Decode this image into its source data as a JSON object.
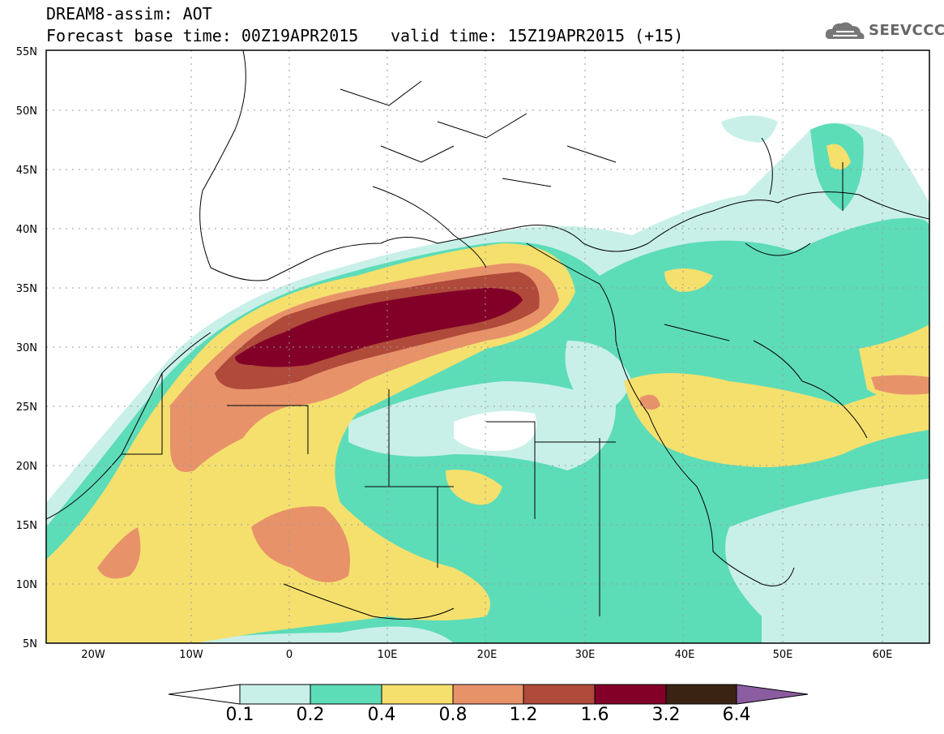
{
  "header": {
    "line1": "DREAM8-assim: AOT",
    "line2": "Forecast base time: 00Z19APR2015",
    "valid": "valid time: 15Z19APR2015 (+15)",
    "logo_text": "SEEVCCC"
  },
  "map": {
    "lat_labels": [
      "55N",
      "50N",
      "45N",
      "40N",
      "35N",
      "30N",
      "25N",
      "20N",
      "15N",
      "10N",
      "5N"
    ],
    "lon_labels": [
      "20W",
      "10W",
      "0",
      "10E",
      "20E",
      "30E",
      "40E",
      "50E",
      "60E"
    ],
    "extent": {
      "lon": [
        -25,
        65
      ],
      "lat": [
        5,
        55
      ]
    }
  },
  "colorbar": {
    "levels": [
      "0.1",
      "0.2",
      "0.4",
      "0.8",
      "1.2",
      "1.6",
      "3.2",
      "6.4"
    ],
    "colors": [
      "#ffffff",
      "#c8f0e8",
      "#5ddcb8",
      "#f5e06e",
      "#e8926a",
      "#b04a3a",
      "#820028",
      "#3b2314",
      "#8a5ca0"
    ]
  }
}
